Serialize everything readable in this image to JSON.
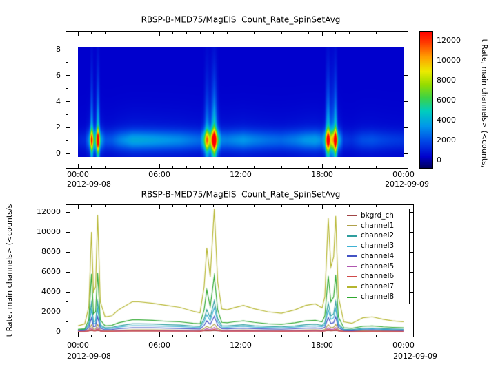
{
  "chart_data": [
    {
      "type": "heatmap",
      "title": "RBSP-B-MED75/MagEIS  Count_Rate_SpinSetAvg",
      "date_left": "2012-09-08",
      "date_right": "2012-09-09",
      "x_ticks": [
        "00:00",
        "06:00",
        "12:00",
        "18:00",
        "00:00"
      ],
      "x_tick_hours": [
        0,
        6,
        12,
        18,
        24
      ],
      "x_range_hours": [
        0,
        24
      ],
      "ylim": [
        0,
        8
      ],
      "y_ticks": [
        0,
        2,
        4,
        6,
        8
      ],
      "colorbar": {
        "label": "t Rate, main channels> (<counts,",
        "ticks": [
          0,
          2000,
          4000,
          6000,
          8000,
          10000,
          12000
        ],
        "vmin": -1200,
        "vmax": 13200,
        "colormap": "rainbow"
      },
      "structure": {
        "intensity_source": "channel7",
        "band_center_y": 1.0,
        "band_sigma_y": 0.75,
        "tail_frac": 0.22,
        "tail_sigma_y": 2.2,
        "stripe_threshold": 3500,
        "stripe_norm": 8500,
        "stripe_gain": 3200,
        "stripe_sigma_y": 5.0
      }
    },
    {
      "type": "line",
      "title": "RBSP-B-MED75/MagEIS  Count_Rate_SpinSetAvg",
      "ylabel": "t Rate, main channels> (<counts/s",
      "date_left": "2012-09-08",
      "date_right": "2012-09-09",
      "x_ticks": [
        "00:00",
        "06:00",
        "12:00",
        "18:00",
        "00:00"
      ],
      "x_tick_hours": [
        0,
        6,
        12,
        18,
        24
      ],
      "x_range_hours": [
        0,
        24
      ],
      "ylim": [
        0,
        12800
      ],
      "y_ticks": [
        0,
        2000,
        4000,
        6000,
        8000,
        10000,
        12000
      ],
      "legend_position": "upper right",
      "x_hours": [
        0,
        0.5,
        0.8,
        1.0,
        1.15,
        1.3,
        1.45,
        1.65,
        2.0,
        2.5,
        3.0,
        4.0,
        4.5,
        5.5,
        6.5,
        7.5,
        8.5,
        9.0,
        9.3,
        9.5,
        9.75,
        10.05,
        10.3,
        10.6,
        11.0,
        11.5,
        12.2,
        13.0,
        14.0,
        15.0,
        16.0,
        16.8,
        17.5,
        18.0,
        18.2,
        18.45,
        18.65,
        18.85,
        19.0,
        19.2,
        19.6,
        20.2,
        21.0,
        21.7,
        22.5,
        23.2,
        24.0
      ],
      "series": [
        {
          "name": "bkgrd_ch",
          "color": "#a04545",
          "values": [
            80,
            80,
            85,
            120,
            90,
            90,
            120,
            85,
            80,
            80,
            80,
            82,
            82,
            82,
            81,
            80,
            80,
            80,
            90,
            110,
            95,
            125,
            95,
            82,
            81,
            82,
            82,
            81,
            80,
            80,
            81,
            82,
            82,
            81,
            85,
            120,
            100,
            105,
            122,
            85,
            78,
            77,
            78,
            79,
            78,
            78,
            77
          ]
        },
        {
          "name": "channel1",
          "color": "#b0a14b",
          "values": [
            60,
            70,
            200,
            700,
            260,
            280,
            750,
            180,
            110,
            115,
            155,
            205,
            205,
            200,
            185,
            170,
            150,
            140,
            330,
            550,
            360,
            780,
            330,
            160,
            150,
            165,
            185,
            160,
            140,
            130,
            155,
            185,
            195,
            170,
            230,
            730,
            410,
            460,
            750,
            205,
            65,
            55,
            90,
            100,
            82,
            72,
            65
          ]
        },
        {
          "name": "channel2",
          "color": "#2f9e9e",
          "values": [
            200,
            250,
            800,
            2900,
            1000,
            1100,
            3000,
            700,
            400,
            450,
            600,
            800,
            800,
            780,
            720,
            680,
            580,
            550,
            1300,
            2200,
            1400,
            3100,
            1300,
            620,
            600,
            650,
            720,
            620,
            540,
            500,
            600,
            720,
            760,
            650,
            900,
            2900,
            1600,
            1800,
            3000,
            800,
            250,
            220,
            350,
            380,
            320,
            280,
            250
          ]
        },
        {
          "name": "channel3",
          "color": "#3fb2d4",
          "values": [
            150,
            190,
            600,
            2200,
            800,
            850,
            2300,
            550,
            320,
            350,
            470,
            620,
            620,
            600,
            560,
            520,
            450,
            430,
            1000,
            1700,
            1100,
            2400,
            1000,
            480,
            460,
            500,
            560,
            480,
            420,
            390,
            470,
            560,
            590,
            510,
            700,
            2200,
            1250,
            1400,
            2300,
            620,
            200,
            170,
            270,
            300,
            250,
            220,
            200
          ]
        },
        {
          "name": "channel4",
          "color": "#4353c4",
          "values": [
            100,
            130,
            400,
            1400,
            520,
            560,
            1500,
            360,
            210,
            230,
            310,
            410,
            410,
            400,
            370,
            340,
            300,
            280,
            650,
            1100,
            720,
            1550,
            660,
            320,
            300,
            330,
            370,
            320,
            280,
            260,
            310,
            370,
            390,
            340,
            460,
            1450,
            820,
            920,
            1500,
            410,
            130,
            110,
            180,
            200,
            165,
            145,
            130
          ]
        },
        {
          "name": "channel5",
          "color": "#b057b0",
          "values": [
            40,
            45,
            120,
            400,
            150,
            160,
            420,
            100,
            65,
            68,
            90,
            120,
            120,
            115,
            108,
            100,
            86,
            80,
            190,
            320,
            210,
            440,
            190,
            93,
            88,
            96,
            108,
            93,
            81,
            76,
            90,
            108,
            113,
            98,
            132,
            420,
            235,
            265,
            430,
            118,
            38,
            32,
            52,
            58,
            48,
            42,
            38
          ]
        },
        {
          "name": "channel6",
          "color": "#d04a4a",
          "values": [
            25,
            28,
            75,
            250,
            92,
            100,
            260,
            64,
            40,
            42,
            56,
            74,
            74,
            72,
            67,
            62,
            53,
            50,
            118,
            200,
            130,
            270,
            118,
            58,
            55,
            60,
            67,
            58,
            50,
            47,
            56,
            67,
            70,
            61,
            82,
            260,
            146,
            164,
            265,
            73,
            23,
            20,
            32,
            36,
            30,
            26,
            23
          ]
        },
        {
          "name": "channel7",
          "color": "#b5b52e",
          "values": [
            600,
            800,
            2500,
            10000,
            4000,
            4500,
            11700,
            3000,
            1500,
            1600,
            2200,
            3000,
            3000,
            2850,
            2650,
            2450,
            2050,
            1900,
            4500,
            8400,
            5500,
            12300,
            5000,
            2300,
            2200,
            2400,
            2650,
            2300,
            2000,
            1850,
            2200,
            2650,
            2800,
            2400,
            3500,
            11400,
            6500,
            7500,
            11600,
            3500,
            1000,
            850,
            1400,
            1500,
            1250,
            1100,
            1000
          ]
        },
        {
          "name": "channel8",
          "color": "#2fa82f",
          "values": [
            250,
            300,
            1200,
            5800,
            1800,
            2000,
            5900,
            1200,
            600,
            650,
            900,
            1200,
            1200,
            1150,
            1050,
            1000,
            850,
            800,
            2200,
            4200,
            2500,
            5600,
            2200,
            950,
            900,
            1000,
            1100,
            950,
            800,
            750,
            900,
            1100,
            1150,
            1000,
            1600,
            5600,
            3000,
            3500,
            5700,
            1500,
            400,
            350,
            550,
            600,
            500,
            450,
            400
          ]
        }
      ]
    }
  ]
}
